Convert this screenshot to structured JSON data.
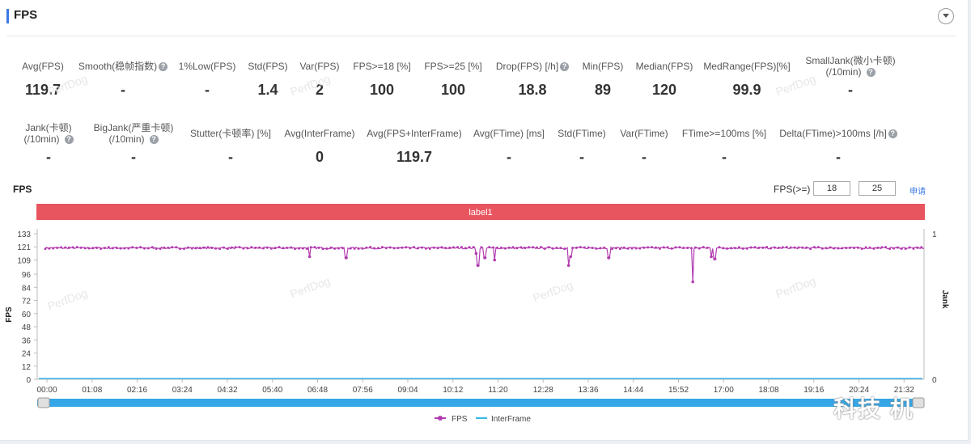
{
  "header": {
    "title": "FPS"
  },
  "stats_row1": [
    {
      "label": "Avg(FPS)",
      "value": "119.7",
      "help": false
    },
    {
      "label": "Smooth(稳帧指数)",
      "value": "-",
      "help": true
    },
    {
      "label": "1%Low(FPS)",
      "value": "-",
      "help": false
    },
    {
      "label": "Std(FPS)",
      "value": "1.4",
      "help": false
    },
    {
      "label": "Var(FPS)",
      "value": "2",
      "help": false
    },
    {
      "label": "FPS>=18 [%]",
      "value": "100",
      "help": false
    },
    {
      "label": "FPS>=25 [%]",
      "value": "100",
      "help": false
    },
    {
      "label": "Drop(FPS) [/h]",
      "value": "18.8",
      "help": true
    },
    {
      "label": "Min(FPS)",
      "value": "89",
      "help": false
    },
    {
      "label": "Median(FPS)",
      "value": "120",
      "help": false
    },
    {
      "label": "MedRange(FPS)[%]",
      "value": "99.9",
      "help": false
    },
    {
      "label": "SmallJank(微小卡顿)",
      "label2": "(/10min)",
      "value": "-",
      "help": true
    }
  ],
  "stats_row2": [
    {
      "label": "Jank(卡顿)",
      "label2": "(/10min)",
      "value": "-",
      "help": true
    },
    {
      "label": "BigJank(严重卡顿)",
      "label2": "(/10min)",
      "value": "-",
      "help": true
    },
    {
      "label": "Stutter(卡顿率) [%]",
      "value": "-",
      "help": false
    },
    {
      "label": "Avg(InterFrame)",
      "value": "0",
      "help": false
    },
    {
      "label": "Avg(FPS+InterFrame)",
      "value": "119.7",
      "help": false
    },
    {
      "label": "Avg(FTime) [ms]",
      "value": "-",
      "help": false
    },
    {
      "label": "Std(FTime)",
      "value": "-",
      "help": false
    },
    {
      "label": "Var(FTime)",
      "value": "-",
      "help": false
    },
    {
      "label": "FTime>=100ms [%]",
      "value": "-",
      "help": false
    },
    {
      "label": "Delta(FTime)>100ms [/h]",
      "value": "-",
      "help": true
    }
  ],
  "chart_header": {
    "title": "FPS",
    "threshold_label": "FPS(>=)",
    "threshold1": "18",
    "threshold2": "25",
    "apply_label": "申请"
  },
  "watermark": "PerfDog",
  "corner_mark": "科技 机",
  "colors": {
    "fps": "#b23cb0",
    "interframe": "#35b9e6",
    "label_band": "#e8555f",
    "accent": "#3b78e7"
  },
  "chart_data": {
    "type": "line",
    "label_band": "label1",
    "x_ticks": [
      "00:00",
      "01:08",
      "02:16",
      "03:24",
      "04:32",
      "05:40",
      "06:48",
      "07:56",
      "09:04",
      "10:12",
      "11:20",
      "12:28",
      "13:36",
      "14:44",
      "15:52",
      "17:00",
      "18:08",
      "19:16",
      "20:24",
      "21:32"
    ],
    "x_range_seconds": [
      0,
      1330
    ],
    "y_ticks": [
      0,
      12,
      24,
      36,
      48,
      60,
      72,
      84,
      96,
      109,
      121,
      133
    ],
    "ylim": [
      0,
      133
    ],
    "ylabel": "FPS",
    "y2label": "Jank",
    "y2_ticks": [
      0,
      1
    ],
    "legend": [
      "FPS",
      "InterFrame"
    ],
    "legend_position": "bottom",
    "fps_baseline": 120,
    "fps_dips": [
      {
        "t_seconds": 400,
        "value": 112
      },
      {
        "t_seconds": 455,
        "value": 111
      },
      {
        "t_seconds": 652,
        "value": 115
      },
      {
        "t_seconds": 655,
        "value": 104
      },
      {
        "t_seconds": 665,
        "value": 111
      },
      {
        "t_seconds": 680,
        "value": 109
      },
      {
        "t_seconds": 792,
        "value": 104
      },
      {
        "t_seconds": 795,
        "value": 112
      },
      {
        "t_seconds": 853,
        "value": 111
      },
      {
        "t_seconds": 980,
        "value": 89
      },
      {
        "t_seconds": 1008,
        "value": 112
      },
      {
        "t_seconds": 1013,
        "value": 110
      }
    ],
    "interframe_value": 0
  }
}
